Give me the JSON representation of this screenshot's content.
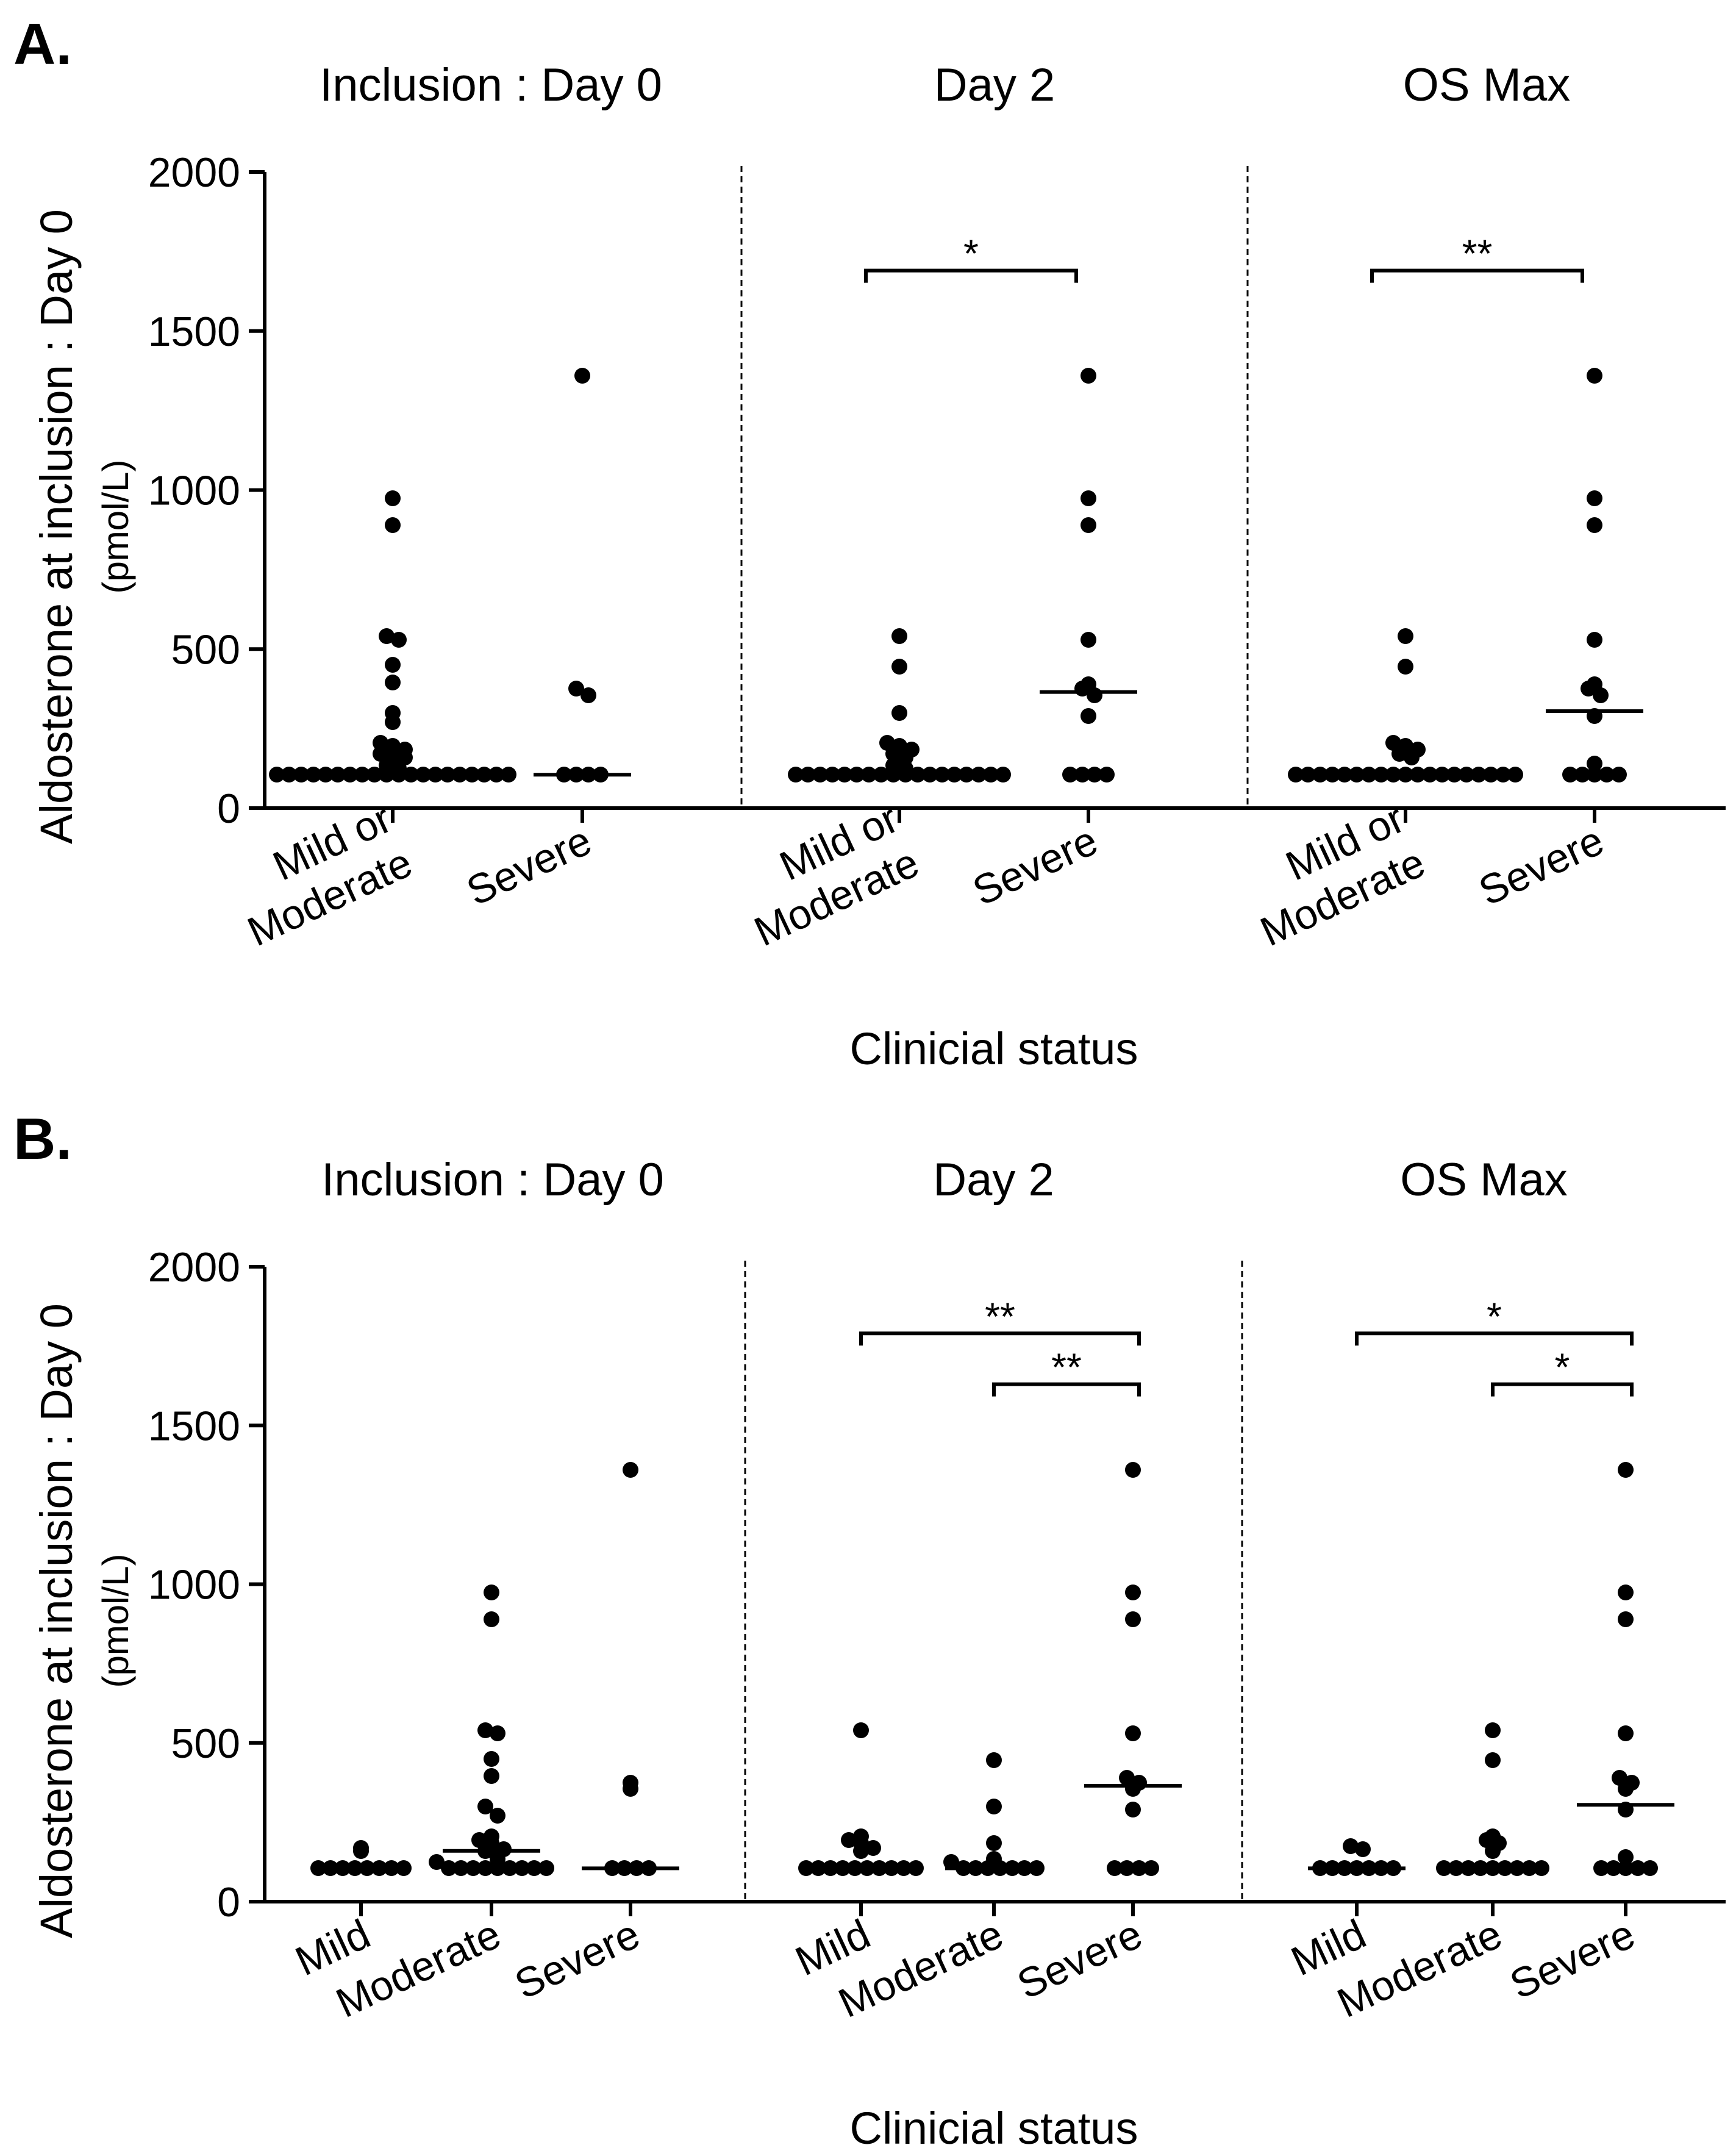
{
  "figure": {
    "xlabel": "Clinicial status",
    "ylabel_main": "Aldosterone at inclusion : Day 0",
    "ylabel_unit": "(pmol/L)"
  },
  "chart_data": [
    {
      "type": "scatter",
      "panel_label": "A.",
      "xlabel": "Clinicial status",
      "ylabel": "Aldosterone at inclusion : Day 0 (pmol/L)",
      "ylim": [
        0,
        2000
      ],
      "yticks": [
        0,
        500,
        1000,
        1500,
        2000
      ],
      "groups": [
        {
          "title": "Inclusion : Day 0",
          "categories": [
            [
              "Mild or",
              "Moderate"
            ],
            [
              "Severe"
            ]
          ],
          "series": [
            {
              "name": "Mild or Moderate",
              "median": 105,
              "values": [
                975,
                890,
                540,
                530,
                450,
                395,
                300,
                270,
                205,
                195,
                185,
                170,
                165,
                160,
                135,
                125,
                105,
                105,
                105,
                105,
                105,
                105,
                105,
                105,
                105,
                105,
                105,
                105,
                105,
                105,
                105,
                105,
                105,
                105,
                105,
                105
              ]
            },
            {
              "name": "Severe",
              "median": 105,
              "values": [
                1360,
                375,
                355,
                105,
                105,
                105,
                105
              ]
            }
          ],
          "significance": []
        },
        {
          "title": "Day 2",
          "categories": [
            [
              "Mild or",
              "Moderate"
            ],
            [
              "Severe"
            ]
          ],
          "series": [
            {
              "name": "Mild or Moderate",
              "median": 105,
              "values": [
                540,
                445,
                300,
                205,
                195,
                185,
                170,
                160,
                135,
                125,
                105,
                105,
                105,
                105,
                105,
                105,
                105,
                105,
                105,
                105,
                105,
                105,
                105,
                105,
                105,
                105,
                105,
                105
              ]
            },
            {
              "name": "Severe",
              "median": 365,
              "values": [
                1360,
                975,
                890,
                530,
                390,
                375,
                355,
                290,
                105,
                105,
                105,
                105
              ]
            }
          ],
          "significance": [
            {
              "from": 0,
              "to": 1,
              "label": "*",
              "y": 1690
            }
          ]
        },
        {
          "title": "OS Max",
          "categories": [
            [
              "Mild or",
              "Moderate"
            ],
            [
              "Severe"
            ]
          ],
          "series": [
            {
              "name": "Mild or Moderate",
              "median": 105,
              "values": [
                540,
                445,
                205,
                195,
                185,
                170,
                160,
                105,
                105,
                105,
                105,
                105,
                105,
                105,
                105,
                105,
                105,
                105,
                105,
                105,
                105,
                105,
                105,
                105,
                105,
                105
              ]
            },
            {
              "name": "Severe",
              "median": 305,
              "values": [
                1360,
                975,
                890,
                530,
                390,
                375,
                355,
                290,
                140,
                105,
                105,
                105,
                105,
                105
              ]
            }
          ],
          "significance": [
            {
              "from": 0,
              "to": 1,
              "label": "**",
              "y": 1690
            }
          ]
        }
      ]
    },
    {
      "type": "scatter",
      "panel_label": "B.",
      "xlabel": "Clinicial status",
      "ylabel": "Aldosterone at inclusion : Day 0 (pmol/L)",
      "ylim": [
        0,
        2000
      ],
      "yticks": [
        0,
        500,
        1000,
        1500,
        2000
      ],
      "groups": [
        {
          "title": "Inclusion : Day 0",
          "categories": [
            [
              "Mild"
            ],
            [
              "Moderate"
            ],
            [
              "Severe"
            ]
          ],
          "series": [
            {
              "name": "Mild",
              "median": 105,
              "values": [
                170,
                160,
                105,
                105,
                105,
                105,
                105,
                105,
                105,
                105
              ]
            },
            {
              "name": "Moderate",
              "median": 160,
              "values": [
                975,
                890,
                540,
                530,
                450,
                395,
                300,
                270,
                205,
                195,
                185,
                165,
                160,
                135,
                125,
                105,
                105,
                105,
                105,
                105,
                105,
                105,
                105,
                105
              ]
            },
            {
              "name": "Severe",
              "median": 105,
              "values": [
                1360,
                375,
                355,
                105,
                105,
                105,
                105
              ]
            }
          ],
          "significance": []
        },
        {
          "title": "Day 2",
          "categories": [
            [
              "Mild"
            ],
            [
              "Moderate"
            ],
            [
              "Severe"
            ]
          ],
          "series": [
            {
              "name": "Mild",
              "median": 105,
              "values": [
                540,
                205,
                195,
                185,
                170,
                160,
                105,
                105,
                105,
                105,
                105,
                105,
                105,
                105,
                105,
                105
              ]
            },
            {
              "name": "Moderate",
              "median": 105,
              "values": [
                445,
                300,
                185,
                135,
                125,
                105,
                105,
                105,
                105,
                105,
                105,
                105
              ]
            },
            {
              "name": "Severe",
              "median": 365,
              "values": [
                1360,
                975,
                890,
                530,
                390,
                375,
                355,
                290,
                105,
                105,
                105,
                105
              ]
            }
          ],
          "significance": [
            {
              "from": 0,
              "to": 2,
              "label": "**",
              "y": 1790
            },
            {
              "from": 1,
              "to": 2,
              "label": "**",
              "y": 1630
            }
          ]
        },
        {
          "title": "OS Max",
          "categories": [
            [
              "Mild"
            ],
            [
              "Moderate"
            ],
            [
              "Severe"
            ]
          ],
          "series": [
            {
              "name": "Mild",
              "median": 105,
              "values": [
                175,
                165,
                105,
                105,
                105,
                105,
                105,
                105,
                105
              ]
            },
            {
              "name": "Moderate",
              "median": 105,
              "values": [
                540,
                445,
                205,
                195,
                185,
                160,
                105,
                105,
                105,
                105,
                105,
                105,
                105,
                105,
                105
              ]
            },
            {
              "name": "Severe",
              "median": 305,
              "values": [
                1360,
                975,
                890,
                530,
                390,
                375,
                355,
                290,
                140,
                105,
                105,
                105,
                105,
                105
              ]
            }
          ],
          "significance": [
            {
              "from": 0,
              "to": 2,
              "label": "*",
              "y": 1790
            },
            {
              "from": 1,
              "to": 2,
              "label": "*",
              "y": 1630
            }
          ]
        }
      ]
    }
  ]
}
